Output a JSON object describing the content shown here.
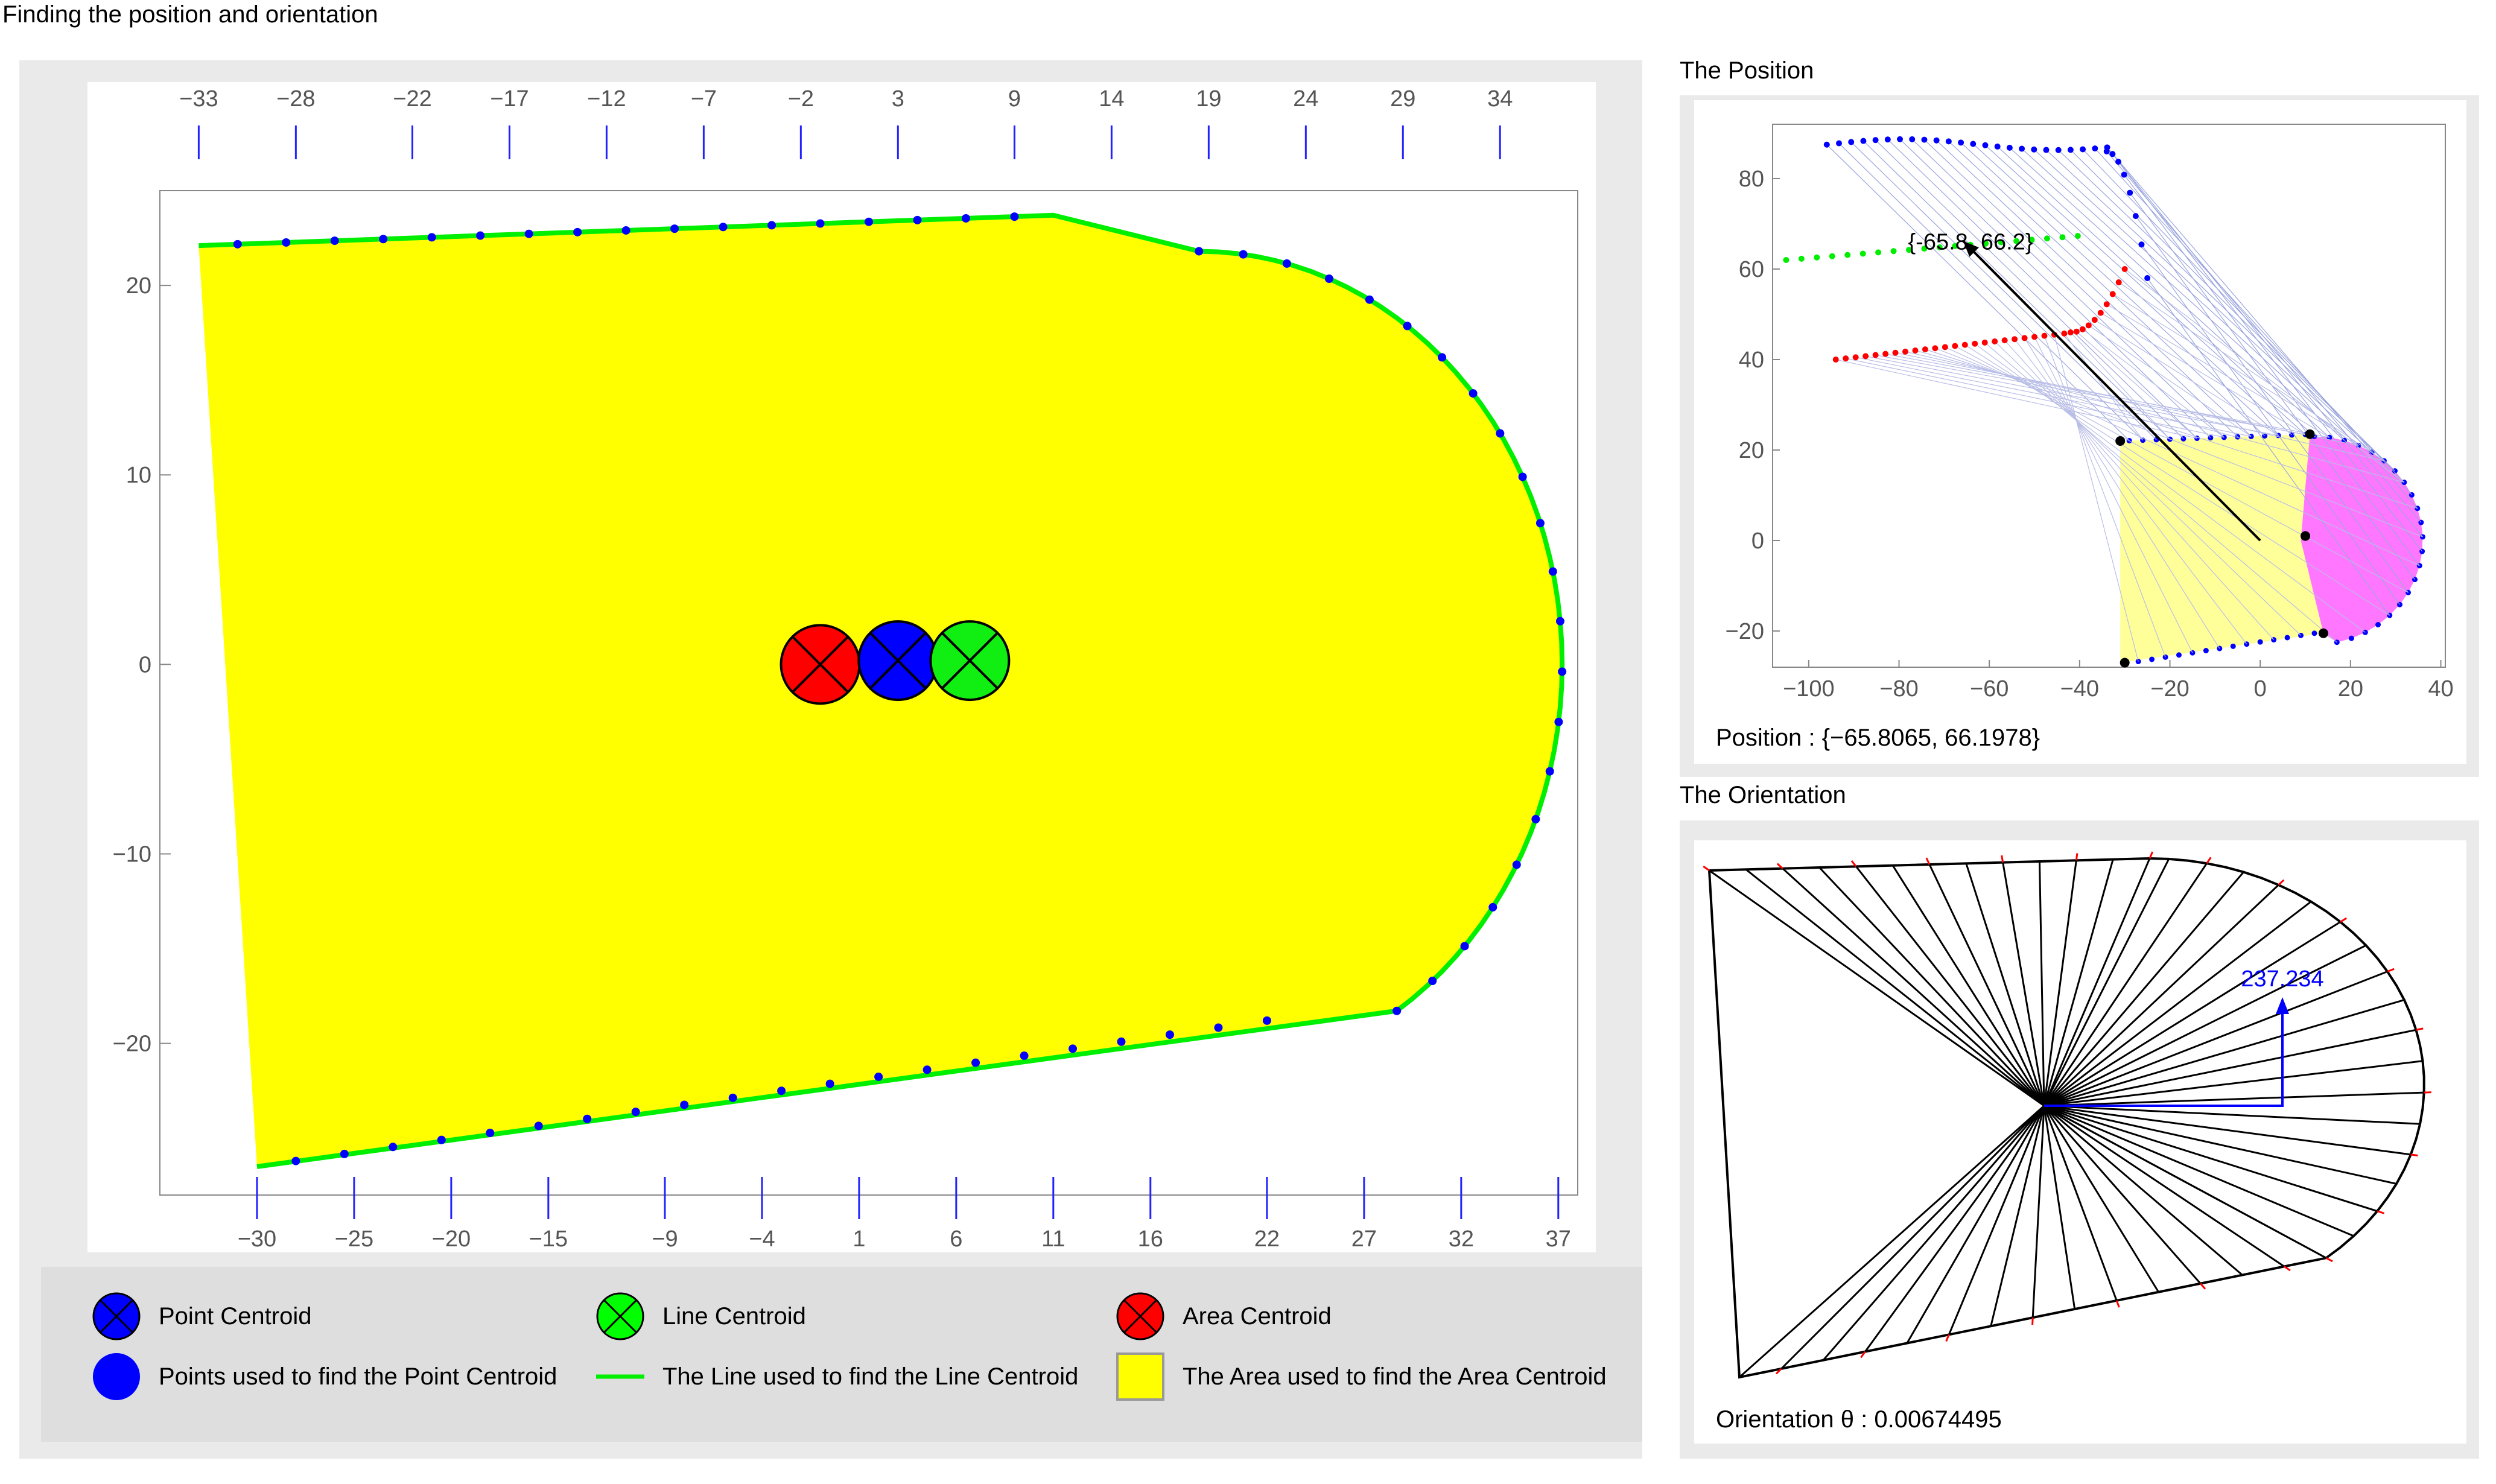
{
  "app": {
    "title": "Finding the position and orientation"
  },
  "colors": {
    "point": "#0000ff",
    "line": "#00ff00",
    "area_fill": "#ffff00",
    "area_centroid": "#ff0000",
    "magenta": "#ff77ff"
  },
  "legend": {
    "items": [
      {
        "icon": "crossed-circle-blue",
        "label": "Point Centroid"
      },
      {
        "icon": "crossed-circle-green",
        "label": "Line Centroid"
      },
      {
        "icon": "crossed-circle-red",
        "label": "Area Centroid"
      },
      {
        "icon": "blue-dot",
        "label": "Points used to find the Point Centroid"
      },
      {
        "icon": "green-line",
        "label": "The Line used to find the Line Centroid"
      },
      {
        "icon": "yellow-square",
        "label": "The Area used to find the Area Centroid"
      }
    ]
  },
  "position_panel": {
    "title": "The Position",
    "arrow_label": "{-65.8, 66.2}",
    "readout": "Position : {−65.8065, 66.1978}"
  },
  "orientation_panel": {
    "title": "The Orientation",
    "value_label": "237.234",
    "readout": "Orientation θ : 0.00674495"
  },
  "chart_data": [
    {
      "type": "scatter",
      "id": "main",
      "xlim": [
        -35,
        38
      ],
      "ylim": [
        -28,
        25
      ],
      "x_ticks_top": [
        -33,
        -28,
        -22,
        -17,
        -12,
        -7,
        -2,
        3,
        9,
        14,
        19,
        24,
        29,
        34
      ],
      "x_ticks_bottom": [
        -30,
        -25,
        -20,
        -15,
        -9,
        -4,
        1,
        6,
        11,
        16,
        22,
        27,
        32,
        37
      ],
      "y_ticks": [
        20,
        10,
        0,
        -10,
        -20
      ],
      "y_tick_labels": [
        "20",
        "10",
        "0",
        "−10",
        "−20"
      ],
      "shape_outline": {
        "top": [
          [
            -33,
            22.1
          ],
          [
            11,
            23.7
          ]
        ],
        "chamfer": [
          [
            11,
            23.7
          ],
          [
            18.5,
            21.8
          ]
        ],
        "arc_center": [
          18.5,
          0
        ],
        "arc_rx": 18.7,
        "arc_ry": 21.8,
        "bottom": [
          [
            24,
            -18.5
          ],
          [
            -30,
            -26.5
          ]
        ]
      },
      "centroids": {
        "area": [
          -1.0,
          0.0
        ],
        "point": [
          3.0,
          0.2
        ],
        "line": [
          6.7,
          0.2
        ]
      }
    },
    {
      "type": "scatter",
      "id": "position",
      "xlim": [
        -108,
        41
      ],
      "ylim": [
        -28,
        92
      ],
      "x_ticks": [
        -100,
        -80,
        -60,
        -40,
        -20,
        0,
        20,
        40
      ],
      "x_tick_labels": [
        "−100",
        "−80",
        "−60",
        "−40",
        "−20",
        "0",
        "20",
        "40"
      ],
      "y_ticks": [
        80,
        60,
        40,
        20,
        0,
        -20
      ],
      "y_tick_labels": [
        "80",
        "60",
        "40",
        "20",
        "0",
        "−20"
      ],
      "arrow": {
        "from": [
          0,
          0
        ],
        "to": [
          -65.8,
          66.2
        ]
      }
    },
    {
      "type": "line",
      "id": "orientation",
      "hub": [
        0,
        0
      ],
      "vector_tip": [
        145,
        72
      ]
    }
  ]
}
